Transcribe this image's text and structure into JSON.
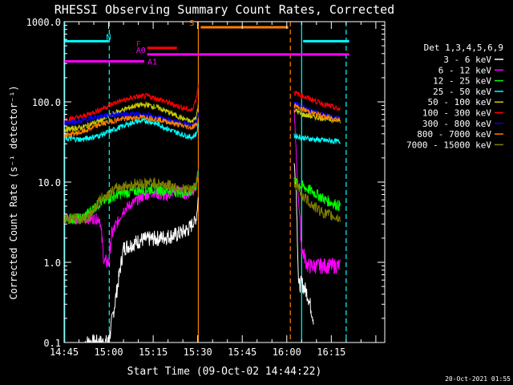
{
  "chart_data": {
    "type": "line",
    "title": "RHESSI Observing Summary Count Rates, Corrected",
    "xlabel": "Start Time (09-Oct-02 14:44:22)",
    "ylabel": "Corrected Count Rate (s⁻¹ detector⁻¹)",
    "y_scale": "log",
    "ylim": [
      0.1,
      1000.0
    ],
    "xlim_minutes": [
      0,
      108
    ],
    "x_ticks": [
      {
        "label": "14:45",
        "t": 0
      },
      {
        "label": "15:00",
        "t": 15
      },
      {
        "label": "15:15",
        "t": 30
      },
      {
        "label": "15:30",
        "t": 45
      },
      {
        "label": "15:45",
        "t": 60
      },
      {
        "label": "16:00",
        "t": 75
      },
      {
        "label": "16:15",
        "t": 90
      }
    ],
    "y_ticks": [
      {
        "label": "0.1",
        "v": 0.1
      },
      {
        "label": "1.0",
        "v": 1.0
      },
      {
        "label": "10.0",
        "v": 10.0
      },
      {
        "label": "100.0",
        "v": 100.0
      },
      {
        "label": "1000.0",
        "v": 1000.0
      }
    ],
    "legend_title": "Det 1,3,4,5,6,9",
    "series": [
      {
        "name": "3 - 6 keV",
        "color": "#ffffff",
        "points": [
          [
            7,
            0.1
          ],
          [
            15,
            0.1
          ],
          [
            20,
            1.5
          ],
          [
            26,
            1.9
          ],
          [
            32,
            2.0
          ],
          [
            38,
            2.2
          ],
          [
            42,
            2.6
          ],
          [
            44.5,
            3.5
          ],
          [
            45.3,
            7.0
          ]
        ],
        "points2": [
          [
            77.5,
            17.0
          ],
          [
            78.2,
            8.0
          ],
          [
            79,
            0.5
          ],
          [
            80,
            0.55
          ],
          [
            82,
            0.4
          ],
          [
            84,
            0.2
          ]
        ]
      },
      {
        "name": "6 - 12 keV",
        "color": "#ff00ff",
        "points": [
          [
            0,
            3.5
          ],
          [
            12,
            3.5
          ],
          [
            13.5,
            1.0
          ],
          [
            15,
            1.0
          ],
          [
            16,
            2.2
          ],
          [
            20,
            4.5
          ],
          [
            26,
            6.5
          ],
          [
            30,
            7.5
          ],
          [
            34,
            6.5
          ],
          [
            38,
            8.0
          ],
          [
            41,
            7.0
          ],
          [
            43,
            7.5
          ],
          [
            44.5,
            9.0
          ],
          [
            45.3,
            14.0
          ]
        ],
        "points2": [
          [
            77.5,
            80.0
          ],
          [
            78,
            30.0
          ],
          [
            78.8,
            8.0
          ],
          [
            80,
            1.5
          ],
          [
            82,
            0.9
          ],
          [
            90,
            0.9
          ],
          [
            93,
            0.9
          ]
        ]
      },
      {
        "name": "12 - 25 keV",
        "color": "#00ff00",
        "points": [
          [
            0,
            3.5
          ],
          [
            6,
            3.5
          ],
          [
            12,
            5.5
          ],
          [
            18,
            7.0
          ],
          [
            24,
            7.8
          ],
          [
            30,
            8.2
          ],
          [
            36,
            7.8
          ],
          [
            40,
            7.4
          ],
          [
            43,
            7.6
          ],
          [
            44.5,
            9.0
          ],
          [
            45.3,
            14.0
          ]
        ],
        "points2": [
          [
            77.5,
            10.0
          ],
          [
            80,
            9.0
          ],
          [
            84,
            7.5
          ],
          [
            88,
            6.0
          ],
          [
            93,
            5.0
          ]
        ]
      },
      {
        "name": "25 - 50 keV",
        "color": "#00ffff",
        "points": [
          [
            0,
            35
          ],
          [
            6,
            34
          ],
          [
            12,
            38
          ],
          [
            18,
            47
          ],
          [
            24,
            57
          ],
          [
            28,
            58
          ],
          [
            32,
            52
          ],
          [
            36,
            44
          ],
          [
            40,
            39
          ],
          [
            43,
            36
          ],
          [
            44.5,
            40
          ],
          [
            45.3,
            52
          ]
        ],
        "points2": [
          [
            77.5,
            38.0
          ],
          [
            80,
            36.0
          ],
          [
            84,
            34.0
          ],
          [
            88,
            33.0
          ],
          [
            93,
            32.0
          ]
        ]
      },
      {
        "name": "50 - 100 keV",
        "color": "#cccc00",
        "points": [
          [
            0,
            45
          ],
          [
            6,
            48
          ],
          [
            12,
            58
          ],
          [
            18,
            75
          ],
          [
            24,
            90
          ],
          [
            28,
            92
          ],
          [
            32,
            84
          ],
          [
            36,
            72
          ],
          [
            40,
            62
          ],
          [
            43,
            56
          ],
          [
            44.5,
            66
          ],
          [
            45.3,
            92
          ]
        ],
        "points2": [
          [
            77.5,
            80.0
          ],
          [
            80,
            70.0
          ],
          [
            84,
            65.0
          ],
          [
            88,
            62.0
          ],
          [
            93,
            58.0
          ]
        ]
      },
      {
        "name": "100 - 300 keV",
        "color": "#ff0000",
        "points": [
          [
            0,
            60
          ],
          [
            6,
            65
          ],
          [
            12,
            80
          ],
          [
            18,
            100
          ],
          [
            24,
            115
          ],
          [
            28,
            118
          ],
          [
            32,
            108
          ],
          [
            36,
            95
          ],
          [
            40,
            84
          ],
          [
            43,
            78
          ],
          [
            44.5,
            110
          ],
          [
            45.3,
            180
          ]
        ],
        "points2": [
          [
            77.5,
            130.0
          ],
          [
            80,
            120.0
          ],
          [
            84,
            105.0
          ],
          [
            88,
            92.0
          ],
          [
            93,
            80.0
          ]
        ]
      },
      {
        "name": "300 - 800 keV",
        "color": "#0000ff",
        "points": [
          [
            0,
            55
          ],
          [
            6,
            58
          ],
          [
            12,
            66
          ],
          [
            18,
            70
          ],
          [
            24,
            70
          ],
          [
            28,
            68
          ],
          [
            32,
            63
          ],
          [
            36,
            58
          ],
          [
            40,
            54
          ],
          [
            43,
            52
          ],
          [
            44.5,
            58
          ],
          [
            45.3,
            70
          ]
        ],
        "points2": [
          [
            77.5,
            100.0
          ],
          [
            80,
            88.0
          ],
          [
            84,
            75.0
          ],
          [
            88,
            67.0
          ],
          [
            93,
            62.0
          ]
        ]
      },
      {
        "name": "800 - 7000 keV",
        "color": "#ff8000",
        "points": [
          [
            0,
            38
          ],
          [
            6,
            42
          ],
          [
            12,
            52
          ],
          [
            18,
            60
          ],
          [
            24,
            64
          ],
          [
            28,
            64
          ],
          [
            32,
            60
          ],
          [
            36,
            55
          ],
          [
            40,
            50
          ],
          [
            43,
            48
          ],
          [
            44.5,
            52
          ],
          [
            45.3,
            60
          ]
        ],
        "points2": [
          [
            77.5,
            90.0
          ],
          [
            80,
            82.0
          ],
          [
            84,
            72.0
          ],
          [
            88,
            65.0
          ],
          [
            93,
            60.0
          ]
        ]
      },
      {
        "name": "7000 - 15000 keV",
        "color": "#808000",
        "points": [
          [
            0,
            3.5
          ],
          [
            8,
            3.5
          ],
          [
            12,
            6.0
          ],
          [
            18,
            8.5
          ],
          [
            24,
            9.5
          ],
          [
            30,
            9.8
          ],
          [
            36,
            9.0
          ],
          [
            40,
            8.2
          ],
          [
            43,
            8.0
          ],
          [
            44.5,
            9.5
          ],
          [
            45.3,
            14.0
          ]
        ],
        "points2": [
          [
            77.5,
            10.0
          ],
          [
            80,
            7.0
          ],
          [
            84,
            5.0
          ],
          [
            88,
            4.0
          ],
          [
            93,
            3.5
          ]
        ]
      }
    ],
    "vlines": [
      {
        "t": 0.2,
        "color": "#00ffff",
        "dash": false
      },
      {
        "t": 15.2,
        "color": "#00ffff",
        "dash": true
      },
      {
        "t": 45.2,
        "color": "#ff8000",
        "dash": false
      },
      {
        "t": 76.2,
        "color": "#ff8000",
        "dash": true
      },
      {
        "t": 80.0,
        "color": "#00ffff",
        "dash": false
      },
      {
        "t": 95.0,
        "color": "#00ffff",
        "dash": true
      }
    ],
    "flag_bars": [
      {
        "label": "N",
        "color": "#00ffff",
        "t0": 0,
        "t1": 15,
        "y": 570
      },
      {
        "label": "",
        "color": "#00ffff",
        "t0": 80.5,
        "t1": 96,
        "y": 570
      },
      {
        "label": "S",
        "color": "#ff8000",
        "t0": 46,
        "t1": 75.5,
        "y": 850
      },
      {
        "label": "F",
        "color": "#ff0000",
        "t0": 28,
        "t1": 38,
        "y": 470
      },
      {
        "label": "A0",
        "color": "#ff00ff",
        "t0": 28,
        "t1": 96,
        "y": 390
      },
      {
        "label": "A1",
        "color": "#ff00ff",
        "t0": 0,
        "t1": 27,
        "y": 320
      }
    ]
  },
  "footer": {
    "date": "20-Oct-2021 01:55"
  }
}
